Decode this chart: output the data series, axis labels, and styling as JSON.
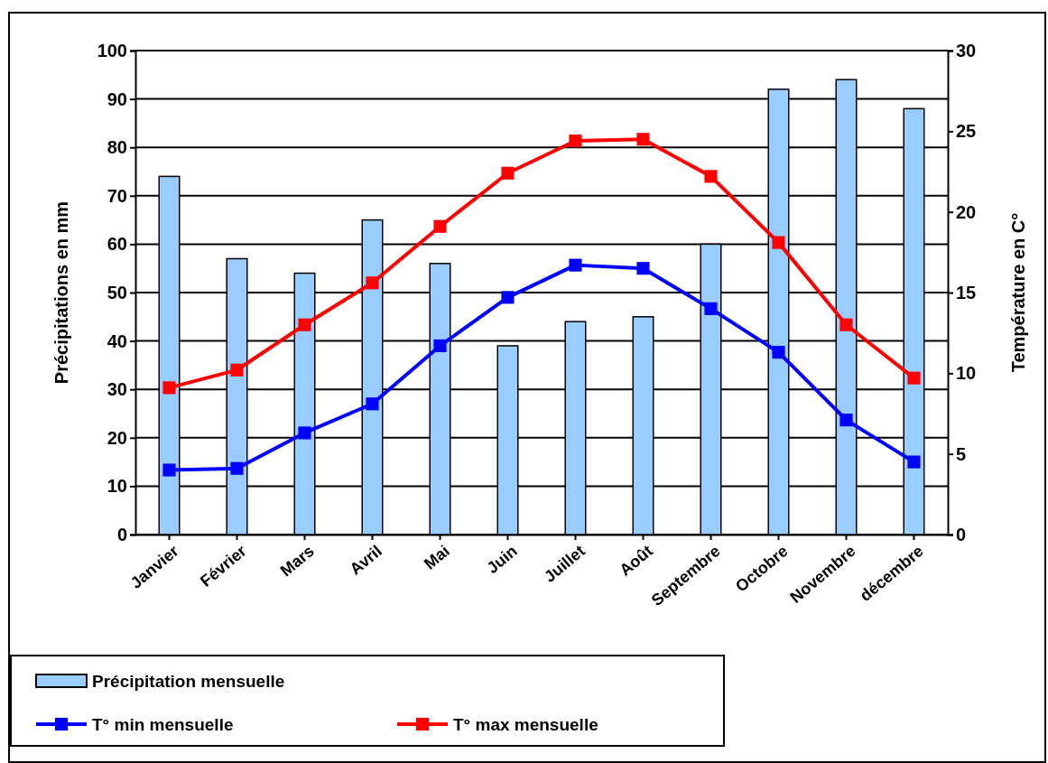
{
  "chart_data": {
    "type": "bar",
    "ylabel": "Précipitations en mm",
    "y2label": "Température en C°",
    "categories": [
      "Janvier",
      "Février",
      "Mars",
      "Avril",
      "Mai",
      "Juin",
      "Juillet",
      "Août",
      "Septembre",
      "Octobre",
      "Novembre",
      "décembre"
    ],
    "series": [
      {
        "name": "Précipitation mensuelle",
        "color": "#99ccff",
        "values": [
          74,
          57,
          54,
          65,
          56,
          39,
          44,
          45,
          60,
          92,
          94,
          88
        ]
      },
      {
        "name": "T° min mensuelle",
        "type": "line",
        "axis": "y2",
        "color": "#0000ff",
        "values": [
          4.0,
          4.1,
          6.3,
          8.1,
          11.7,
          14.7,
          16.7,
          16.5,
          14.0,
          11.3,
          7.1,
          4.5
        ]
      },
      {
        "name": "T° max mensuelle",
        "type": "line",
        "axis": "y2",
        "color": "#ff0000",
        "values": [
          9.1,
          10.2,
          13.0,
          15.6,
          19.1,
          22.4,
          24.4,
          24.5,
          22.2,
          18.1,
          13.0,
          9.7
        ]
      }
    ],
    "ylim": [
      0,
      100
    ],
    "yticks": [
      0,
      10,
      20,
      30,
      40,
      50,
      60,
      70,
      80,
      90,
      100
    ],
    "y2lim": [
      0,
      30
    ],
    "y2ticks": [
      0,
      5,
      10,
      15,
      20,
      25,
      30
    ],
    "grid": "y",
    "legend": "bottom",
    "marker": "square",
    "line_style": "solid"
  }
}
